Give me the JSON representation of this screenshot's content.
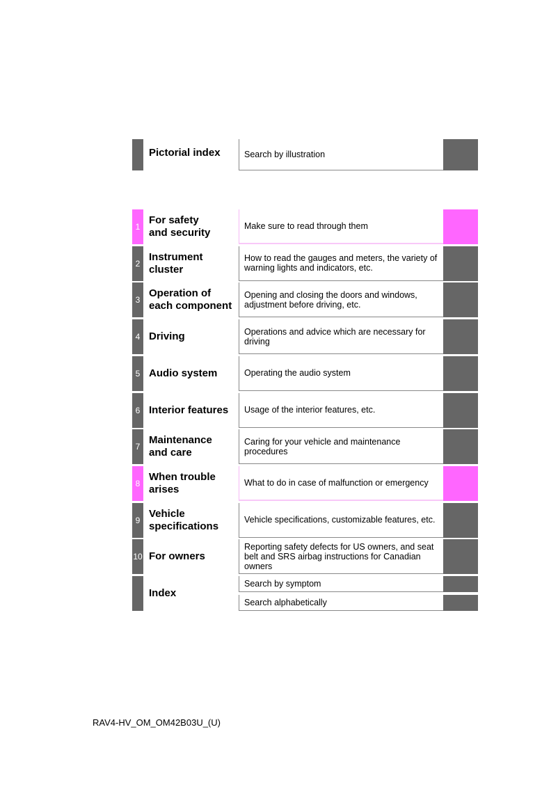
{
  "pictorial": {
    "title": "Pictorial index",
    "description": "Search by illustration"
  },
  "chapters": [
    {
      "number": "1",
      "title": "For safety\nand security",
      "description": "Make sure to read through them",
      "color": "#ff66ff"
    },
    {
      "number": "2",
      "title": "Instrument\ncluster",
      "description": "How to read the gauges and meters, the variety of warning lights and indicators, etc.",
      "color": "#666666"
    },
    {
      "number": "3",
      "title": "Operation of\neach component",
      "description": "Opening and closing the doors and windows, adjustment before driving, etc.",
      "color": "#666666"
    },
    {
      "number": "4",
      "title": "Driving",
      "description": "Operations and advice which are necessary for driving",
      "color": "#666666"
    },
    {
      "number": "5",
      "title": "Audio system",
      "description": "Operating the audio system",
      "color": "#666666"
    },
    {
      "number": "6",
      "title": "Interior features",
      "description": "Usage of the interior features, etc.",
      "color": "#666666"
    },
    {
      "number": "7",
      "title": "Maintenance\nand care",
      "description": "Caring for your vehicle and maintenance procedures",
      "color": "#666666"
    },
    {
      "number": "8",
      "title": "When trouble\narises",
      "description": "What to do in case of malfunction or emergency",
      "color": "#ff66ff"
    },
    {
      "number": "9",
      "title": "Vehicle\nspecifications",
      "description": "Vehicle specifications, customizable features, etc.",
      "color": "#666666"
    },
    {
      "number": "10",
      "title": "For owners",
      "description": "Reporting safety defects for US owners, and seat belt and SRS airbag instructions for Canadian owners",
      "color": "#666666"
    }
  ],
  "index": {
    "title": "Index",
    "items": [
      "Search by symptom",
      "Search alphabetically"
    ]
  },
  "footer": "RAV4-HV_OM_OM42B03U_(U)"
}
